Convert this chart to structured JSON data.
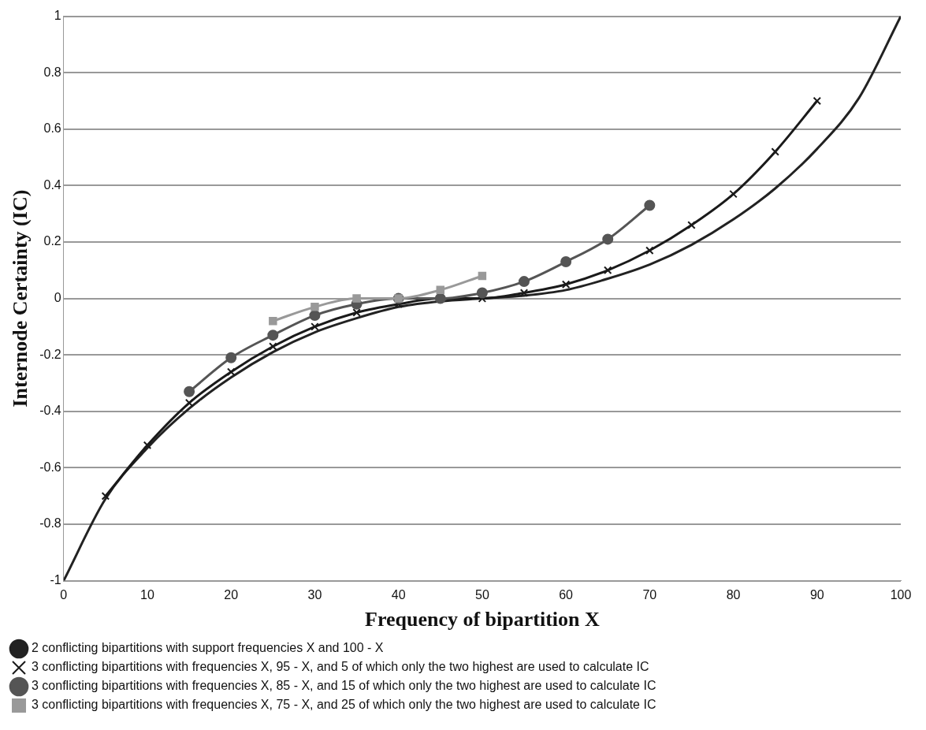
{
  "chart_data": {
    "type": "line",
    "xlabel": "Frequency of bipartition X",
    "ylabel": "Internode Certainty (IC)",
    "xlim": [
      0,
      100
    ],
    "xticks": [
      0,
      10,
      20,
      30,
      40,
      50,
      60,
      70,
      80,
      90,
      100
    ],
    "ylim": [
      -1,
      1
    ],
    "yticks": [
      -1,
      -0.8,
      -0.6,
      -0.4,
      -0.2,
      0,
      0.2,
      0.4,
      0.6,
      0.8,
      1
    ],
    "grid": "y",
    "legend": "bottom",
    "line_style": "solid",
    "series": [
      {
        "name": "2 conflicting bipartitions with support frequencies X and 100 - X",
        "color": "#222222",
        "marker": "none",
        "x": [
          0,
          5,
          10,
          15,
          20,
          25,
          30,
          35,
          40,
          45,
          50,
          55,
          60,
          65,
          70,
          75,
          80,
          85,
          90,
          95,
          100
        ],
        "values": [
          -1,
          -0.71,
          -0.53,
          -0.39,
          -0.28,
          -0.19,
          -0.12,
          -0.07,
          -0.03,
          -0.01,
          0,
          0.01,
          0.03,
          0.07,
          0.12,
          0.19,
          0.28,
          0.39,
          0.53,
          0.71,
          1
        ]
      },
      {
        "name": "3 conflicting bipartitions with frequencies X, 95 - X, and 5 of which only the two highest are used to calculate IC",
        "color": "#1a1a1a",
        "marker": "cross",
        "x": [
          5,
          10,
          15,
          20,
          25,
          30,
          35,
          40,
          45,
          50,
          55,
          60,
          65,
          70,
          75,
          80,
          85,
          90
        ],
        "values": [
          -0.7,
          -0.52,
          -0.37,
          -0.26,
          -0.17,
          -0.1,
          -0.05,
          -0.02,
          0,
          0,
          0.02,
          0.05,
          0.1,
          0.17,
          0.26,
          0.37,
          0.52,
          0.7
        ]
      },
      {
        "name": "3 conflicting bipartitions with frequencies X, 85 - X, and 15 of which only the two highest are used to calculate IC",
        "color": "#555555",
        "marker": "circle",
        "x": [
          15,
          20,
          25,
          30,
          35,
          40,
          45,
          50,
          55,
          60,
          65,
          70
        ],
        "values": [
          -0.33,
          -0.21,
          -0.13,
          -0.06,
          -0.02,
          0,
          0,
          0.02,
          0.06,
          0.13,
          0.21,
          0.33
        ]
      },
      {
        "name": "3 conflicting bipartitions with frequencies X, 75 - X, and 25 of which only the two highest are used to calculate IC",
        "color": "#999999",
        "marker": "square",
        "x": [
          25,
          30,
          35,
          40,
          45,
          50
        ],
        "values": [
          -0.08,
          -0.03,
          0,
          0,
          0.03,
          0.08
        ]
      }
    ]
  }
}
